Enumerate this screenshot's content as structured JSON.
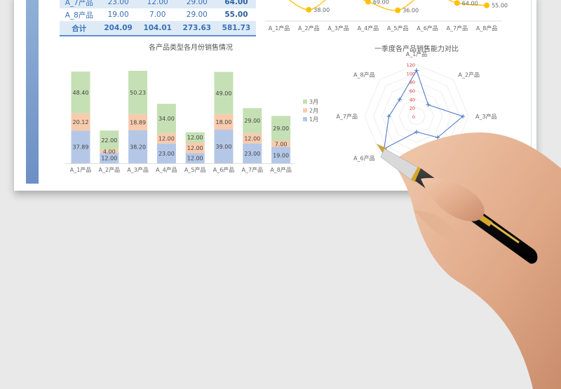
{
  "table": {
    "rows": [
      {
        "name": "A_7产品",
        "m1": "23.00",
        "m2": "12.00",
        "m3": "29.00",
        "total": "64.00"
      },
      {
        "name": "A_8产品",
        "m1": "19.00",
        "m2": "7.00",
        "m3": "29.00",
        "total": "55.00"
      }
    ],
    "total_row": {
      "name": "合计",
      "m1": "204.09",
      "m2": "104.01",
      "m3": "273.63",
      "total": "581.73"
    }
  },
  "colors": {
    "jan": "#b4c7e7",
    "feb": "#f8cbad",
    "mar": "#c5e0b4",
    "line": "#ffc000",
    "radar": "#4472c4",
    "table_text": "#3a70b8"
  },
  "chart_data": [
    {
      "type": "line",
      "categories": [
        "A_1产品",
        "A_2产品",
        "A_3产品",
        "A_4产品",
        "A_5产品",
        "A_6产品",
        "A_7产品",
        "A_8产品"
      ],
      "values": [
        106.41,
        38,
        107.32,
        69,
        36,
        106,
        64,
        55
      ],
      "data_labels": [
        "",
        "38.00",
        "",
        "69.00",
        "36.00",
        "",
        "64.00",
        "55.00"
      ],
      "smooth": true
    },
    {
      "type": "bar",
      "stacked": true,
      "title": "各产品类型各月份销售情况",
      "categories": [
        "A_1产品",
        "A_2产品",
        "A_3产品",
        "A_4产品",
        "A_5产品",
        "A_6产品",
        "A_7产品",
        "A_8产品"
      ],
      "series": [
        {
          "name": "1月",
          "values": [
            37.89,
            12,
            38.2,
            23,
            12,
            39,
            23,
            19
          ],
          "labels": [
            "37.89",
            "12.00",
            "38.20",
            "23.00",
            "12.00",
            "39.00",
            "23.00",
            "19.00"
          ]
        },
        {
          "name": "2月",
          "values": [
            20.12,
            4,
            18.89,
            12,
            12,
            18,
            12,
            7
          ],
          "labels": [
            "20.12",
            "4.00",
            "18.89",
            "12.00",
            "12.00",
            "18.00",
            "12.00",
            "7.00"
          ]
        },
        {
          "name": "3月",
          "values": [
            48.4,
            22,
            50.23,
            34,
            12,
            49,
            29,
            29
          ],
          "labels": [
            "48.40",
            "22.00",
            "50.23",
            "34.00",
            "12.00",
            "49.00",
            "29.00",
            "29.00"
          ]
        }
      ],
      "legend": "right",
      "legend_order": [
        "3月",
        "2月",
        "1月"
      ]
    },
    {
      "type": "radar",
      "title": "一季度各产品销售能力对比",
      "categories": [
        "A_1产品",
        "A_2产品",
        "A_3产品",
        "A_4产品",
        "A_5产品",
        "A_6产品",
        "A_7产品",
        "A_8产品"
      ],
      "values": [
        106.41,
        38,
        107.32,
        69,
        36,
        106,
        64,
        55
      ],
      "ticks": [
        "0",
        "20",
        "40",
        "60",
        "80",
        "100",
        "120"
      ],
      "range": [
        0,
        120
      ]
    }
  ]
}
